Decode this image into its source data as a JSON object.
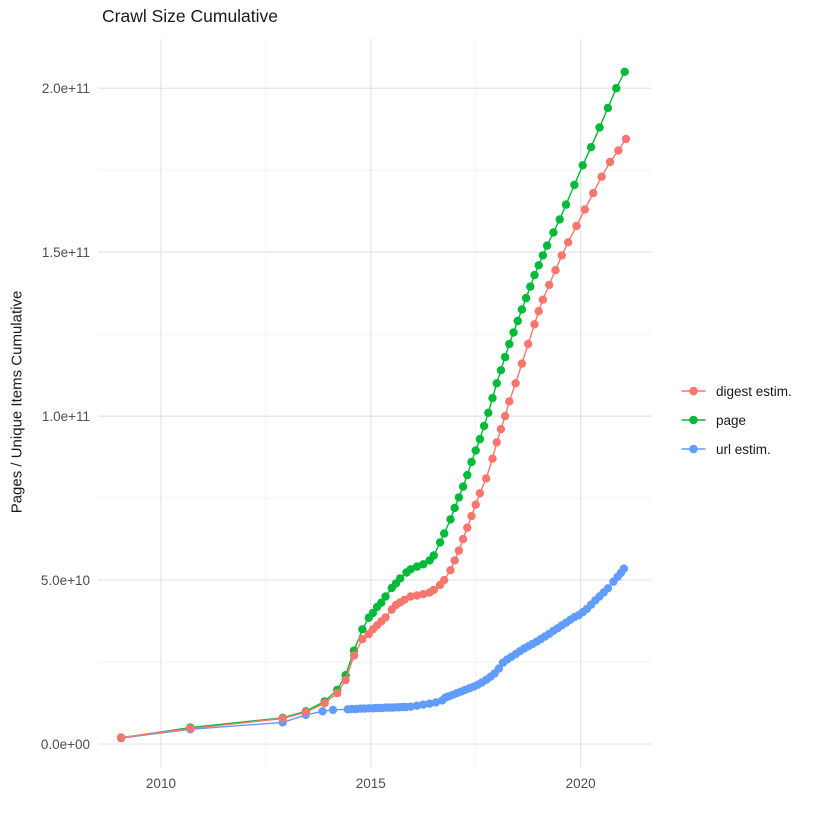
{
  "title": "Crawl Size Cumulative",
  "y_axis": {
    "label": "Pages / Unique Items Cumulative",
    "ticks": [
      "0.0e+00",
      "5.0e+10",
      "1.0e+11",
      "1.5e+11",
      "2.0e+11"
    ]
  },
  "x_axis": {
    "ticks": [
      "2010",
      "2015",
      "2020"
    ]
  },
  "legend": {
    "position": "right",
    "items": [
      {
        "label": "digest estim.",
        "color": "#F8766D"
      },
      {
        "label": "page",
        "color": "#00BA38"
      },
      {
        "label": "url estim.",
        "color": "#619CFF"
      }
    ]
  },
  "colors": {
    "background": "#ffffff",
    "grid_major": "#e4e4e4",
    "grid_minor": "#f0f0f0",
    "tick_text": "#4d4d4d",
    "title_text": "#1a1a1a"
  },
  "chart_data": {
    "type": "line",
    "title": "Crawl Size Cumulative",
    "xlabel": "",
    "ylabel": "Pages / Unique Items Cumulative",
    "xlim": [
      2008.5,
      2021.7
    ],
    "ylim": [
      -7000000000.0,
      215000000000.0
    ],
    "x_major": [
      2010,
      2015,
      2020
    ],
    "x_minor": [
      2012.5,
      2017.5
    ],
    "y_major": [
      0,
      50000000000.0,
      100000000000.0,
      150000000000.0,
      200000000000.0
    ],
    "y_minor": [
      25000000000.0,
      75000000000.0,
      125000000000.0,
      175000000000.0
    ],
    "grid": true,
    "legend_position": "right",
    "point_meaning": "[year, cumulative pages or unique items]",
    "series": [
      {
        "name": "digest estim.",
        "color": "#F8766D",
        "points": [
          [
            2009.05,
            2000000000.0
          ],
          [
            2010.7,
            4700000000.0
          ],
          [
            2012.9,
            7800000000.0
          ],
          [
            2013.45,
            9700000000.0
          ],
          [
            2013.9,
            12500000000.0
          ],
          [
            2014.2,
            15500000000.0
          ],
          [
            2014.4,
            19500000000.0
          ],
          [
            2014.6,
            27000000000.0
          ],
          [
            2014.8,
            32000000000.0
          ],
          [
            2014.95,
            33500000000.0
          ],
          [
            2015.05,
            35000000000.0
          ],
          [
            2015.15,
            36200000000.0
          ],
          [
            2015.25,
            37400000000.0
          ],
          [
            2015.35,
            38600000000.0
          ],
          [
            2015.5,
            41000000000.0
          ],
          [
            2015.6,
            42400000000.0
          ],
          [
            2015.7,
            43200000000.0
          ],
          [
            2015.8,
            44000000000.0
          ],
          [
            2015.95,
            45000000000.0
          ],
          [
            2016.1,
            45300000000.0
          ],
          [
            2016.25,
            45700000000.0
          ],
          [
            2016.4,
            46200000000.0
          ],
          [
            2016.5,
            47000000000.0
          ],
          [
            2016.65,
            48500000000.0
          ],
          [
            2016.75,
            50000000000.0
          ],
          [
            2016.9,
            53000000000.0
          ],
          [
            2017.0,
            56000000000.0
          ],
          [
            2017.1,
            59000000000.0
          ],
          [
            2017.2,
            62500000000.0
          ],
          [
            2017.3,
            66000000000.0
          ],
          [
            2017.4,
            69500000000.0
          ],
          [
            2017.5,
            73000000000.0
          ],
          [
            2017.6,
            76500000000.0
          ],
          [
            2017.75,
            81000000000.0
          ],
          [
            2017.9,
            87000000000.0
          ],
          [
            2018.0,
            92000000000.0
          ],
          [
            2018.1,
            96000000000.0
          ],
          [
            2018.2,
            100000000000.0
          ],
          [
            2018.3,
            104500000000.0
          ],
          [
            2018.45,
            110000000000.0
          ],
          [
            2018.6,
            116000000000.0
          ],
          [
            2018.75,
            122000000000.0
          ],
          [
            2018.9,
            128000000000.0
          ],
          [
            2019.0,
            132000000000.0
          ],
          [
            2019.1,
            135500000000.0
          ],
          [
            2019.25,
            140000000000.0
          ],
          [
            2019.4,
            144500000000.0
          ],
          [
            2019.55,
            149000000000.0
          ],
          [
            2019.7,
            153000000000.0
          ],
          [
            2019.9,
            158000000000.0
          ],
          [
            2020.1,
            163000000000.0
          ],
          [
            2020.3,
            168000000000.0
          ],
          [
            2020.5,
            173000000000.0
          ],
          [
            2020.7,
            177500000000.0
          ],
          [
            2020.9,
            181000000000.0
          ],
          [
            2021.08,
            184500000000.0
          ]
        ]
      },
      {
        "name": "page",
        "color": "#00BA38",
        "points": [
          [
            2009.05,
            1900000000.0
          ],
          [
            2010.7,
            5000000000.0
          ],
          [
            2012.9,
            8000000000.0
          ],
          [
            2013.45,
            10000000000.0
          ],
          [
            2013.9,
            13000000000.0
          ],
          [
            2014.2,
            16500000000.0
          ],
          [
            2014.4,
            21000000000.0
          ],
          [
            2014.6,
            28500000000.0
          ],
          [
            2014.8,
            35000000000.0
          ],
          [
            2014.95,
            38500000000.0
          ],
          [
            2015.05,
            40000000000.0
          ],
          [
            2015.15,
            41800000000.0
          ],
          [
            2015.25,
            43100000000.0
          ],
          [
            2015.35,
            45000000000.0
          ],
          [
            2015.5,
            47600000000.0
          ],
          [
            2015.6,
            49000000000.0
          ],
          [
            2015.7,
            50500000000.0
          ],
          [
            2015.85,
            52300000000.0
          ],
          [
            2015.95,
            53300000000.0
          ],
          [
            2016.1,
            54100000000.0
          ],
          [
            2016.25,
            54800000000.0
          ],
          [
            2016.4,
            56000000000.0
          ],
          [
            2016.5,
            57500000000.0
          ],
          [
            2016.65,
            61500000000.0
          ],
          [
            2016.75,
            64200000000.0
          ],
          [
            2016.9,
            68500000000.0
          ],
          [
            2017.0,
            72000000000.0
          ],
          [
            2017.1,
            75200000000.0
          ],
          [
            2017.2,
            78500000000.0
          ],
          [
            2017.3,
            82000000000.0
          ],
          [
            2017.4,
            86000000000.0
          ],
          [
            2017.5,
            89500000000.0
          ],
          [
            2017.6,
            93000000000.0
          ],
          [
            2017.7,
            97000000000.0
          ],
          [
            2017.8,
            101000000000.0
          ],
          [
            2017.9,
            105500000000.0
          ],
          [
            2018.0,
            110000000000.0
          ],
          [
            2018.1,
            114000000000.0
          ],
          [
            2018.2,
            118000000000.0
          ],
          [
            2018.3,
            122000000000.0
          ],
          [
            2018.4,
            125500000000.0
          ],
          [
            2018.5,
            129000000000.0
          ],
          [
            2018.6,
            132500000000.0
          ],
          [
            2018.7,
            136000000000.0
          ],
          [
            2018.8,
            139500000000.0
          ],
          [
            2018.9,
            143000000000.0
          ],
          [
            2019.0,
            146000000000.0
          ],
          [
            2019.1,
            149000000000.0
          ],
          [
            2019.2,
            152000000000.0
          ],
          [
            2019.35,
            156000000000.0
          ],
          [
            2019.5,
            160000000000.0
          ],
          [
            2019.65,
            164500000000.0
          ],
          [
            2019.85,
            170500000000.0
          ],
          [
            2020.05,
            176500000000.0
          ],
          [
            2020.25,
            182000000000.0
          ],
          [
            2020.45,
            188000000000.0
          ],
          [
            2020.65,
            194000000000.0
          ],
          [
            2020.85,
            200000000000.0
          ],
          [
            2021.05,
            205000000000.0
          ]
        ]
      },
      {
        "name": "url estim.",
        "color": "#619CFF",
        "points": [
          [
            2009.05,
            1800000000.0
          ],
          [
            2010.7,
            4500000000.0
          ],
          [
            2012.9,
            6600000000.0
          ],
          [
            2013.45,
            8900000000.0
          ],
          [
            2013.85,
            10000000000.0
          ],
          [
            2014.1,
            10400000000.0
          ],
          [
            2014.45,
            10600000000.0
          ],
          [
            2014.55,
            10700000000.0
          ],
          [
            2014.65,
            10700000000.0
          ],
          [
            2014.75,
            10800000000.0
          ],
          [
            2014.85,
            10800000000.0
          ],
          [
            2014.95,
            10900000000.0
          ],
          [
            2015.05,
            10900000000.0
          ],
          [
            2015.12,
            11000000000.0
          ],
          [
            2015.2,
            11000000000.0
          ],
          [
            2015.28,
            11000000000.0
          ],
          [
            2015.36,
            11100000000.0
          ],
          [
            2015.44,
            11100000000.0
          ],
          [
            2015.52,
            11100000000.0
          ],
          [
            2015.6,
            11200000000.0
          ],
          [
            2015.68,
            11200000000.0
          ],
          [
            2015.76,
            11300000000.0
          ],
          [
            2015.84,
            11300000000.0
          ],
          [
            2015.95,
            11400000000.0
          ],
          [
            2016.1,
            11700000000.0
          ],
          [
            2016.25,
            12000000000.0
          ],
          [
            2016.4,
            12300000000.0
          ],
          [
            2016.55,
            12700000000.0
          ],
          [
            2016.7,
            13300000000.0
          ],
          [
            2016.78,
            14200000000.0
          ],
          [
            2016.85,
            14500000000.0
          ],
          [
            2016.95,
            15000000000.0
          ],
          [
            2017.05,
            15500000000.0
          ],
          [
            2017.15,
            16000000000.0
          ],
          [
            2017.25,
            16500000000.0
          ],
          [
            2017.35,
            17000000000.0
          ],
          [
            2017.45,
            17500000000.0
          ],
          [
            2017.55,
            18100000000.0
          ],
          [
            2017.65,
            18800000000.0
          ],
          [
            2017.75,
            19600000000.0
          ],
          [
            2017.85,
            20500000000.0
          ],
          [
            2017.95,
            21500000000.0
          ],
          [
            2018.05,
            23000000000.0
          ],
          [
            2018.15,
            24800000000.0
          ],
          [
            2018.25,
            25800000000.0
          ],
          [
            2018.35,
            26600000000.0
          ],
          [
            2018.45,
            27400000000.0
          ],
          [
            2018.55,
            28300000000.0
          ],
          [
            2018.65,
            29100000000.0
          ],
          [
            2018.75,
            29800000000.0
          ],
          [
            2018.85,
            30500000000.0
          ],
          [
            2018.95,
            31200000000.0
          ],
          [
            2019.05,
            32000000000.0
          ],
          [
            2019.15,
            32800000000.0
          ],
          [
            2019.25,
            33600000000.0
          ],
          [
            2019.35,
            34500000000.0
          ],
          [
            2019.45,
            35300000000.0
          ],
          [
            2019.55,
            36200000000.0
          ],
          [
            2019.65,
            37000000000.0
          ],
          [
            2019.75,
            37900000000.0
          ],
          [
            2019.85,
            38700000000.0
          ],
          [
            2019.95,
            39300000000.0
          ],
          [
            2020.05,
            40200000000.0
          ],
          [
            2020.15,
            41200000000.0
          ],
          [
            2020.25,
            42500000000.0
          ],
          [
            2020.35,
            43800000000.0
          ],
          [
            2020.45,
            45000000000.0
          ],
          [
            2020.55,
            46200000000.0
          ],
          [
            2020.65,
            47500000000.0
          ],
          [
            2020.78,
            49500000000.0
          ],
          [
            2020.88,
            51000000000.0
          ],
          [
            2020.96,
            52200000000.0
          ],
          [
            2021.03,
            53500000000.0
          ]
        ]
      }
    ]
  }
}
